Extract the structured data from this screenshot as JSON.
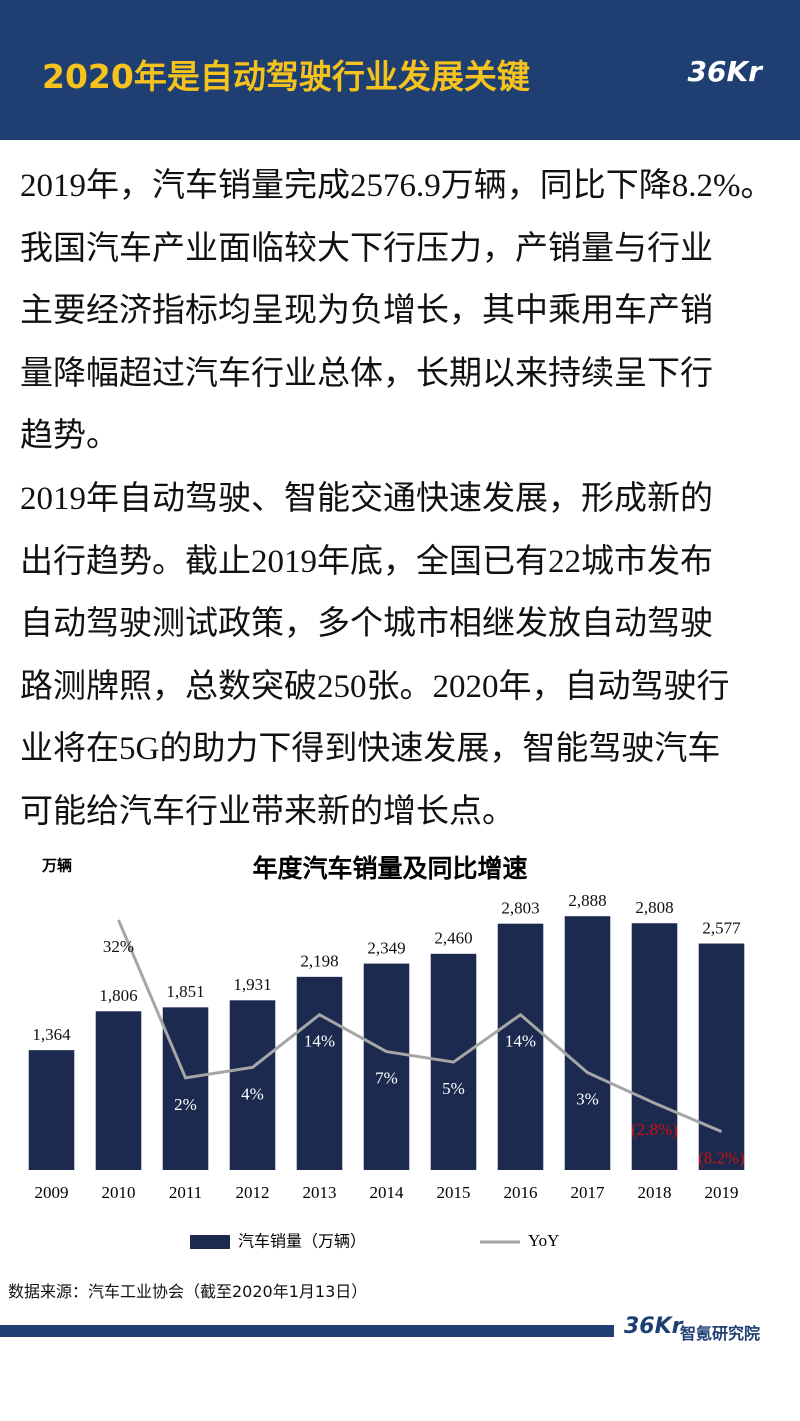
{
  "header": {
    "title": "2020年是自动驾驶行业发展关键",
    "logo": "36Kr"
  },
  "paragraphs": [
    [
      "2019年，汽车销量完成2576.9万辆，同比下降8.2%。",
      "我国汽车产业面临较大下行压力，产销量与行业",
      "主要经济指标均呈现为负增长，其中乘用车产销",
      "量降幅超过汽车行业总体，长期以来持续呈下行",
      "趋势。"
    ],
    [
      "2019年自动驾驶、智能交通快速发展，形成新的",
      "出行趋势。截止2019年底，全国已有22城市发布",
      "自动驾驶测试政策，多个城市相继发放自动驾驶",
      "路测牌照，总数突破250张。2020年，自动驾驶行",
      "业将在5G的助力下得到快速发展，智能驾驶汽车",
      "可能给汽车行业带来新的增长点。"
    ]
  ],
  "chart_data": {
    "type": "bar",
    "title": "年度汽车销量及同比增速",
    "unit_label": "万辆",
    "categories": [
      "2009",
      "2010",
      "2011",
      "2012",
      "2013",
      "2014",
      "2015",
      "2016",
      "2017",
      "2018",
      "2019"
    ],
    "series": [
      {
        "name": "汽车销量（万辆）",
        "type": "bar",
        "color": "#1b2a4e",
        "values": [
          1364,
          1806,
          1851,
          1931,
          2198,
          2349,
          2460,
          2803,
          2888,
          2808,
          2577
        ],
        "value_labels": [
          "1,364",
          "1,806",
          "1,851",
          "1,931",
          "2,198",
          "2,349",
          "2,460",
          "2,803",
          "2,888",
          "2,808",
          "2,577"
        ]
      },
      {
        "name": "YoY",
        "type": "line",
        "axis": "y2",
        "color": "#a6a6a6",
        "negative_label_color": "#d01010",
        "values": [
          null,
          32,
          2,
          4,
          14,
          7,
          5,
          14,
          3,
          -2.8,
          -8.2
        ],
        "value_labels": [
          null,
          "32%",
          "2%",
          "4%",
          "14%",
          "7%",
          "5%",
          "14%",
          "3%",
          "(2.8%)",
          "(8.2%)"
        ]
      }
    ],
    "ylim": [
      0,
      3300
    ],
    "y2lim": [
      -15.5,
      39.6
    ],
    "grid": false,
    "legend": "bottom"
  },
  "source": "数据来源：汽车工业协会（截至2020年1月13日）",
  "footer": {
    "logo": "36Kr",
    "org": "智氪研究院"
  }
}
